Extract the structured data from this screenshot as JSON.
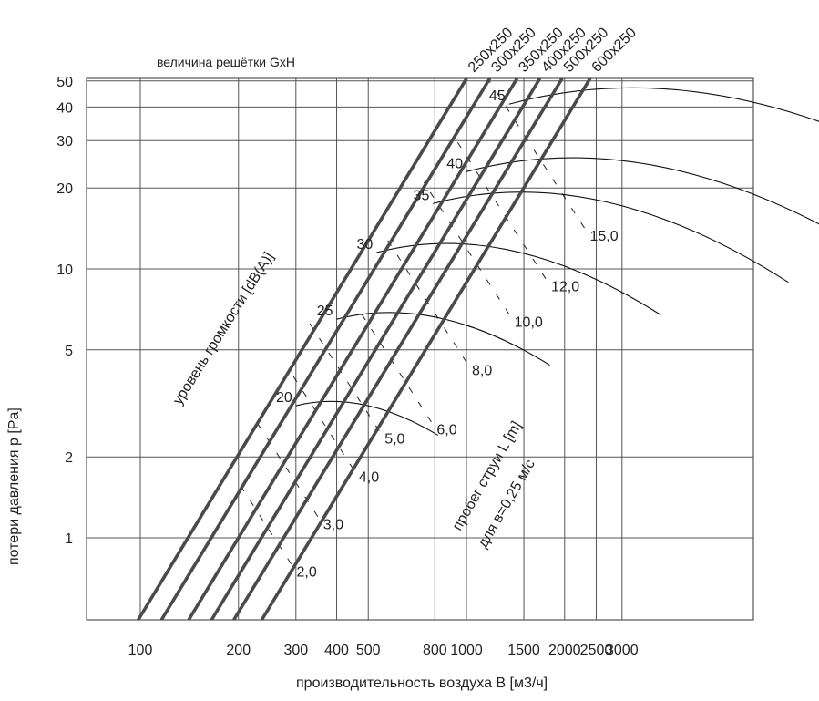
{
  "chart_data": {
    "type": "line",
    "title": "",
    "top_note": "величина решётки  GxH",
    "xlabel": "производительность воздуха  B [м3/ч]",
    "ylabel": "потери давления   p [Pa]",
    "noise_label": "уровень громкости [dB(A)]",
    "throw_label_1": "пробег струи  L [m]",
    "throw_label_2": "для  в=0,25 м/с",
    "x_scale": "log",
    "y_scale": "log",
    "grid": true,
    "x_tick_labels": [
      "100",
      "200",
      "300",
      "400",
      "500",
      "800",
      "1000",
      "1500",
      "2000",
      "2500",
      "3000"
    ],
    "y_tick_labels": [
      "1",
      "2",
      "5",
      "10",
      "20",
      "30",
      "40",
      "50"
    ],
    "series": [
      {
        "name": "250x250",
        "flow_at_1Pa": 140
      },
      {
        "name": "300x250",
        "flow_at_1Pa": 165
      },
      {
        "name": "350x250",
        "flow_at_1Pa": 200
      },
      {
        "name": "400x250",
        "flow_at_1Pa": 235
      },
      {
        "name": "500x250",
        "flow_at_1Pa": 275
      },
      {
        "name": "600x250",
        "flow_at_1Pa": 335
      }
    ],
    "noise_levels": [
      {
        "label": "20",
        "x": 300,
        "y": 3.1
      },
      {
        "label": "25",
        "x": 400,
        "y": 6.5
      },
      {
        "label": "30",
        "x": 530,
        "y": 11.5
      },
      {
        "label": "35",
        "x": 790,
        "y": 17.5
      },
      {
        "label": "40",
        "x": 1000,
        "y": 23
      },
      {
        "label": "45",
        "x": 1350,
        "y": 41
      }
    ],
    "throw_lengths": [
      {
        "label": "2,0",
        "x": 290,
        "y": 0.8
      },
      {
        "label": "3,0",
        "x": 350,
        "y": 1.2
      },
      {
        "label": "4,0",
        "x": 450,
        "y": 1.8
      },
      {
        "label": "5,0",
        "x": 540,
        "y": 2.5
      },
      {
        "label": "6,0",
        "x": 780,
        "y": 2.7
      },
      {
        "label": "8,0",
        "x": 1000,
        "y": 4.5
      },
      {
        "label": "10,0",
        "x": 1350,
        "y": 6.8
      },
      {
        "label": "12,0",
        "x": 1750,
        "y": 9.2
      },
      {
        "label": "15,0",
        "x": 2300,
        "y": 14.2
      }
    ]
  }
}
